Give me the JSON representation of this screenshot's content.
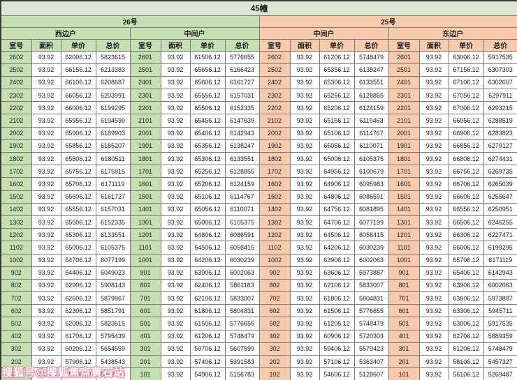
{
  "title": "45幢",
  "watermark": "搜狐号@搜狐焦点黄石站",
  "colors": {
    "green": "#c6e0b4",
    "orange": "#f8cbad",
    "title_bg": "#dbe7d3",
    "grid_line": "#7a7a7a",
    "watermark_pink": "#f48ca8"
  },
  "sections": [
    {
      "label": "26号",
      "tone": "green"
    },
    {
      "label": "25号",
      "tone": "orange"
    }
  ],
  "column_headers": [
    "室号",
    "面积",
    "单价",
    "总价"
  ],
  "column_keys": [
    "room",
    "area",
    "unit-price",
    "total-price"
  ],
  "groups": [
    {
      "section": "26号",
      "unit_label": "西边户",
      "tone": "green",
      "rows": [
        [
          "2602",
          "93.92",
          "62006.12",
          "5823615"
        ],
        [
          "2502",
          "93.92",
          "66156.12",
          "6213383"
        ],
        [
          "2402",
          "93.92",
          "66106.12",
          "6208687"
        ],
        [
          "2302",
          "93.92",
          "66056.12",
          "6203991"
        ],
        [
          "2202",
          "93.92",
          "66006.12",
          "6199295"
        ],
        [
          "2102",
          "93.92",
          "65956.12",
          "6194599"
        ],
        [
          "2002",
          "93.92",
          "65906.12",
          "6189903"
        ],
        [
          "1902",
          "93.92",
          "65856.12",
          "6185207"
        ],
        [
          "1802",
          "93.92",
          "65806.12",
          "6180511"
        ],
        [
          "1702",
          "93.92",
          "65756.12",
          "6175815"
        ],
        [
          "1602",
          "93.92",
          "65706.12",
          "6171119"
        ],
        [
          "1502",
          "93.92",
          "65606.12",
          "6161727"
        ],
        [
          "1402",
          "93.92",
          "65556.12",
          "6157031"
        ],
        [
          "1302",
          "93.92",
          "65506.12",
          "6152335"
        ],
        [
          "1202",
          "93.92",
          "65306.12",
          "6133551"
        ],
        [
          "1102",
          "93.92",
          "65006.12",
          "6105375"
        ],
        [
          "1002",
          "93.92",
          "64706.12",
          "6077199"
        ],
        [
          "902",
          "93.92",
          "64406.12",
          "6049023"
        ],
        [
          "802",
          "93.92",
          "62906.12",
          "5908143"
        ],
        [
          "702",
          "93.92",
          "62606.12",
          "5879967"
        ],
        [
          "602",
          "93.92",
          "62306.12",
          "5851791"
        ],
        [
          "502",
          "93.92",
          "62006.12",
          "5823615"
        ],
        [
          "402",
          "93.92",
          "61706.12",
          "5795439"
        ],
        [
          "302",
          "93.92",
          "60206.12",
          "5654559"
        ],
        [
          "202",
          "93.92",
          "57906.12",
          "5438543"
        ],
        [
          "102",
          "93.92",
          "55406.12",
          "5203743"
        ]
      ]
    },
    {
      "section": "26号",
      "unit_label": "中间户",
      "tone": "green",
      "rows": [
        [
          "2601",
          "93.92",
          "61506.12",
          "5776655"
        ],
        [
          "2501",
          "93.92",
          "65656.12",
          "6166423"
        ],
        [
          "2401",
          "93.92",
          "65606.12",
          "6161727"
        ],
        [
          "2301",
          "93.92",
          "65556.12",
          "6157031"
        ],
        [
          "2201",
          "93.92",
          "65506.12",
          "6152335"
        ],
        [
          "2101",
          "93.92",
          "65456.12",
          "6147639"
        ],
        [
          "2001",
          "93.92",
          "65406.12",
          "6142943"
        ],
        [
          "1901",
          "93.92",
          "65356.12",
          "6138247"
        ],
        [
          "1801",
          "93.92",
          "65306.12",
          "6133551"
        ],
        [
          "1701",
          "93.92",
          "65256.12",
          "6128855"
        ],
        [
          "1601",
          "93.92",
          "65206.12",
          "6124159"
        ],
        [
          "1501",
          "93.92",
          "65106.12",
          "6114767"
        ],
        [
          "1401",
          "93.92",
          "65056.12",
          "6110071"
        ],
        [
          "1301",
          "93.92",
          "65006.12",
          "6105375"
        ],
        [
          "1201",
          "93.92",
          "64806.12",
          "6086591"
        ],
        [
          "1101",
          "93.92",
          "64506.12",
          "6058415"
        ],
        [
          "1001",
          "93.92",
          "64206.12",
          "6030239"
        ],
        [
          "901",
          "93.92",
          "63906.12",
          "6002063"
        ],
        [
          "801",
          "93.92",
          "62406.12",
          "5861183"
        ],
        [
          "701",
          "93.92",
          "62106.12",
          "5833007"
        ],
        [
          "601",
          "93.92",
          "61806.12",
          "5804831"
        ],
        [
          "501",
          "93.92",
          "61506.12",
          "5776655"
        ],
        [
          "401",
          "93.92",
          "61206.12",
          "5748479"
        ],
        [
          "301",
          "93.92",
          "59706.12",
          "5607599"
        ],
        [
          "201",
          "93.92",
          "57406.12",
          "5391583"
        ],
        [
          "101",
          "93.92",
          "54906.12",
          "5156783"
        ]
      ]
    },
    {
      "section": "25号",
      "unit_label": "中间户",
      "tone": "orange",
      "rows": [
        [
          "2602",
          "93.92",
          "61206.12",
          "5748479"
        ],
        [
          "2502",
          "93.92",
          "65356.12",
          "6138247"
        ],
        [
          "2402",
          "93.92",
          "65306.12",
          "6133551"
        ],
        [
          "2302",
          "93.92",
          "65256.12",
          "6128855"
        ],
        [
          "2202",
          "93.92",
          "65206.12",
          "6124159"
        ],
        [
          "2102",
          "93.92",
          "65156.12",
          "6119463"
        ],
        [
          "2002",
          "93.92",
          "65106.12",
          "6114767"
        ],
        [
          "1902",
          "93.92",
          "65056.12",
          "6110071"
        ],
        [
          "1802",
          "93.92",
          "65006.12",
          "6105375"
        ],
        [
          "1702",
          "93.92",
          "64956.12",
          "6100679"
        ],
        [
          "1602",
          "93.92",
          "64906.12",
          "6095983"
        ],
        [
          "1502",
          "93.92",
          "64806.12",
          "6086591"
        ],
        [
          "1402",
          "93.92",
          "64756.12",
          "6081895"
        ],
        [
          "1302",
          "93.92",
          "64706.12",
          "6077199"
        ],
        [
          "1202",
          "93.92",
          "64506.12",
          "6058415"
        ],
        [
          "1102",
          "93.92",
          "64206.12",
          "6030239"
        ],
        [
          "1002",
          "93.92",
          "63906.12",
          "6002063"
        ],
        [
          "902",
          "93.92",
          "63606.12",
          "5973887"
        ],
        [
          "802",
          "93.92",
          "62106.12",
          "5833007"
        ],
        [
          "702",
          "93.92",
          "61806.12",
          "5804831"
        ],
        [
          "602",
          "93.92",
          "61506.12",
          "5776655"
        ],
        [
          "502",
          "93.92",
          "61206.12",
          "5748479"
        ],
        [
          "402",
          "93.92",
          "60906.12",
          "5720303"
        ],
        [
          "302",
          "93.92",
          "59406.12",
          "5579423"
        ],
        [
          "202",
          "93.92",
          "57106.12",
          "5363407"
        ],
        [
          "102",
          "93.92",
          "54606.12",
          "5128607"
        ]
      ]
    },
    {
      "section": "25号",
      "unit_label": "东边户",
      "tone": "orange",
      "rows": [
        [
          "2601",
          "93.92",
          "63006.12",
          "5917535"
        ],
        [
          "2501",
          "93.92",
          "67156.12",
          "6307303"
        ],
        [
          "2401",
          "93.92",
          "67106.12",
          "6302607"
        ],
        [
          "2301",
          "93.92",
          "67056.12",
          "6297911"
        ],
        [
          "2201",
          "93.92",
          "67006.12",
          "6293215"
        ],
        [
          "2101",
          "93.92",
          "66956.12",
          "6288519"
        ],
        [
          "2001",
          "93.92",
          "66906.12",
          "6283823"
        ],
        [
          "1901",
          "93.92",
          "66856.12",
          "6279127"
        ],
        [
          "1801",
          "93.92",
          "66806.12",
          "6274431"
        ],
        [
          "1701",
          "93.92",
          "66756.12",
          "6269735"
        ],
        [
          "1601",
          "93.92",
          "66706.12",
          "6265039"
        ],
        [
          "1501",
          "93.92",
          "66606.12",
          "6255647"
        ],
        [
          "1401",
          "93.92",
          "66556.12",
          "6250951"
        ],
        [
          "1301",
          "93.92",
          "66506.12",
          "6246255"
        ],
        [
          "1201",
          "93.92",
          "66306.12",
          "6227471"
        ],
        [
          "1101",
          "93.92",
          "66006.12",
          "6199295"
        ],
        [
          "1001",
          "93.92",
          "65706.12",
          "6171119"
        ],
        [
          "901",
          "93.92",
          "65406.12",
          "6142943"
        ],
        [
          "801",
          "93.92",
          "63906.12",
          "6002063"
        ],
        [
          "701",
          "93.92",
          "63606.12",
          "5973887"
        ],
        [
          "601",
          "93.92",
          "63306.12",
          "5945711"
        ],
        [
          "501",
          "93.92",
          "63006.12",
          "5917535"
        ],
        [
          "401",
          "93.92",
          "62706.12",
          "5889359"
        ],
        [
          "301",
          "93.92",
          "61206.12",
          "5748479"
        ],
        [
          "201",
          "93.92",
          "58106.12",
          "5457327"
        ],
        [
          "101",
          "93.92",
          "56106.12",
          "5269487"
        ]
      ]
    }
  ]
}
